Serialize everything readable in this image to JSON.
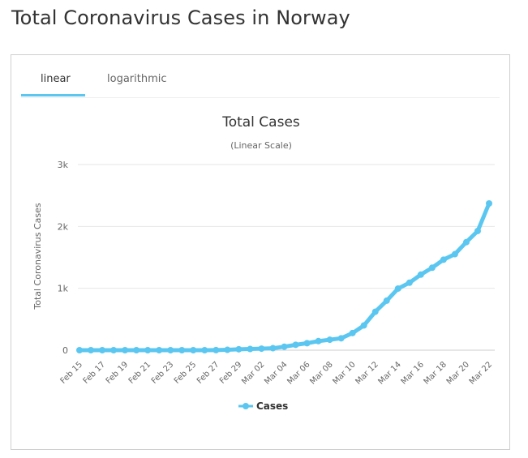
{
  "page": {
    "title": "Total Coronavirus Cases in Norway"
  },
  "tabs": [
    {
      "label": "linear",
      "active": true
    },
    {
      "label": "logarithmic",
      "active": false
    }
  ],
  "colors": {
    "series": "#5bc7f0",
    "tab_underline": "#5bc7f0",
    "grid": "#e6e6e6"
  },
  "chart_data": {
    "type": "line",
    "title": "Total Cases",
    "subtitle": "(Linear Scale)",
    "ylabel": "Total Coronavirus Cases",
    "xlabel": "",
    "ylim": [
      0,
      3000
    ],
    "yticks": [
      {
        "value": 0,
        "label": "0"
      },
      {
        "value": 1000,
        "label": "1k"
      },
      {
        "value": 2000,
        "label": "2k"
      },
      {
        "value": 3000,
        "label": "3k"
      }
    ],
    "grid": true,
    "legend": "bottom-center",
    "categories": [
      "Feb 15",
      "Feb 16",
      "Feb 17",
      "Feb 18",
      "Feb 19",
      "Feb 20",
      "Feb 21",
      "Feb 22",
      "Feb 23",
      "Feb 24",
      "Feb 25",
      "Feb 26",
      "Feb 27",
      "Feb 28",
      "Feb 29",
      "Mar 01",
      "Mar 02",
      "Mar 03",
      "Mar 04",
      "Mar 05",
      "Mar 06",
      "Mar 07",
      "Mar 08",
      "Mar 09",
      "Mar 10",
      "Mar 11",
      "Mar 12",
      "Mar 13",
      "Mar 14",
      "Mar 15",
      "Mar 16",
      "Mar 17",
      "Mar 18",
      "Mar 19",
      "Mar 20",
      "Mar 21",
      "Mar 22"
    ],
    "tick_labels": [
      "Feb 15",
      "Feb 17",
      "Feb 19",
      "Feb 21",
      "Feb 23",
      "Feb 25",
      "Feb 27",
      "Feb 29",
      "Mar 02",
      "Mar 04",
      "Mar 06",
      "Mar 08",
      "Mar 10",
      "Mar 12",
      "Mar 14",
      "Mar 16",
      "Mar 18",
      "Mar 20",
      "Mar 22"
    ],
    "series": [
      {
        "name": "Cases",
        "values": [
          0,
          0,
          0,
          0,
          0,
          0,
          0,
          0,
          0,
          0,
          0,
          0,
          1,
          6,
          15,
          19,
          25,
          32,
          56,
          87,
          113,
          147,
          169,
          192,
          277,
          400,
          621,
          800,
          996,
          1090,
          1221,
          1333,
          1463,
          1552,
          1746,
          1926,
          2371
        ]
      }
    ]
  }
}
